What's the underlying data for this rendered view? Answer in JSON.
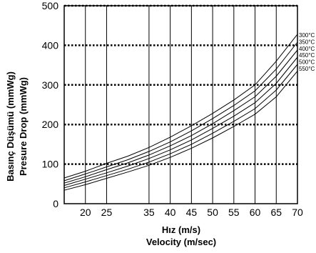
{
  "chart_data": {
    "type": "line",
    "title": "",
    "xlabel": [
      "Hız (m/s)",
      "Velocity (m/sec)"
    ],
    "ylabel": [
      "Basınç Düşümü (mmWg)",
      "Presure Drop (mmWg)"
    ],
    "xlim": [
      15,
      70
    ],
    "ylim": [
      0,
      500
    ],
    "x_ticks": [
      20,
      25,
      35,
      40,
      45,
      50,
      55,
      60,
      65,
      70
    ],
    "x_tick_labels": [
      "20",
      "25",
      "35",
      "40",
      "45",
      "50",
      "55",
      "60",
      "65",
      "70"
    ],
    "y_ticks": [
      0,
      100,
      200,
      300,
      400,
      500
    ],
    "y_tick_labels": [
      "0",
      "100",
      "200",
      "300",
      "400",
      "500"
    ],
    "grid": "dotted horizontal at 100-500, solid vertical at x ticks",
    "x": [
      15,
      20,
      25,
      30,
      35,
      40,
      45,
      50,
      55,
      60,
      65,
      70
    ],
    "series": [
      {
        "name": "300°C",
        "values": [
          65,
          82,
          102,
          120,
          142,
          168,
          197,
          228,
          262,
          300,
          360,
          428
        ]
      },
      {
        "name": "350°C",
        "values": [
          58,
          75,
          93,
          111,
          132,
          156,
          184,
          215,
          248,
          285,
          340,
          408
        ]
      },
      {
        "name": "400°C",
        "values": [
          52,
          68,
          86,
          103,
          123,
          146,
          172,
          202,
          235,
          270,
          322,
          388
        ]
      },
      {
        "name": "450°C",
        "values": [
          46,
          62,
          78,
          95,
          114,
          136,
          161,
          190,
          221,
          255,
          304,
          370
        ]
      },
      {
        "name": "500°C",
        "values": [
          40,
          55,
          71,
          87,
          105,
          126,
          150,
          178,
          208,
          240,
          287,
          352
        ]
      },
      {
        "name": "550°C",
        "values": [
          34,
          48,
          64,
          80,
          97,
          117,
          140,
          166,
          195,
          226,
          270,
          335
        ]
      }
    ]
  }
}
